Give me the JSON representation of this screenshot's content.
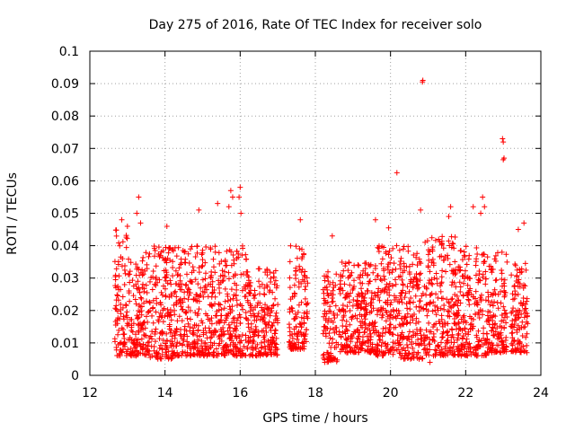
{
  "chart_data": {
    "type": "scatter",
    "title": "Day 275 of 2016, Rate Of TEC Index for receiver solo",
    "xlabel": "GPS time / hours",
    "ylabel": "ROTI / TECUs",
    "xlim": [
      12,
      24
    ],
    "ylim": [
      0,
      0.1
    ],
    "xticks": [
      12,
      14,
      16,
      18,
      20,
      22,
      24
    ],
    "xtick_labels": [
      "12",
      "14",
      "16",
      "18",
      "20",
      "22",
      "24"
    ],
    "yticks": [
      0,
      0.01,
      0.02,
      0.03,
      0.04,
      0.05,
      0.06,
      0.07,
      0.08,
      0.09,
      0.1
    ],
    "ytick_labels": [
      "0",
      "0.01",
      "0.02",
      "0.03",
      "0.04",
      "0.05",
      "0.06",
      "0.07",
      "0.08",
      "0.09",
      "0.1"
    ],
    "grid": true,
    "marker": "+",
    "series": [
      {
        "name": "ROTI",
        "color": "#ff0000",
        "x_range": [
          12.65,
          23.65
        ],
        "y_typical": [
          0.005,
          0.035
        ],
        "clusters": [
          {
            "x_from": 12.65,
            "x_to": 13.0,
            "y_from": 0.006,
            "y_to": 0.045
          },
          {
            "x_from": 13.0,
            "x_to": 13.6,
            "y_from": 0.006,
            "y_to": 0.038
          },
          {
            "x_from": 13.6,
            "x_to": 14.2,
            "y_from": 0.005,
            "y_to": 0.04
          },
          {
            "x_from": 14.2,
            "x_to": 14.8,
            "y_from": 0.006,
            "y_to": 0.04
          },
          {
            "x_from": 14.8,
            "x_to": 15.5,
            "y_from": 0.006,
            "y_to": 0.04
          },
          {
            "x_from": 15.5,
            "x_to": 16.2,
            "y_from": 0.006,
            "y_to": 0.04
          },
          {
            "x_from": 16.2,
            "x_to": 17.0,
            "y_from": 0.006,
            "y_to": 0.033
          },
          {
            "x_from": 17.3,
            "x_to": 17.8,
            "y_from": 0.008,
            "y_to": 0.04
          },
          {
            "x_from": 18.2,
            "x_to": 18.6,
            "y_from": 0.004,
            "y_to": 0.032
          },
          {
            "x_from": 18.6,
            "x_to": 19.6,
            "y_from": 0.007,
            "y_to": 0.035
          },
          {
            "x_from": 19.6,
            "x_to": 20.2,
            "y_from": 0.006,
            "y_to": 0.04
          },
          {
            "x_from": 20.2,
            "x_to": 20.9,
            "y_from": 0.005,
            "y_to": 0.04
          },
          {
            "x_from": 20.9,
            "x_to": 21.8,
            "y_from": 0.006,
            "y_to": 0.043
          },
          {
            "x_from": 21.8,
            "x_to": 22.6,
            "y_from": 0.006,
            "y_to": 0.04
          },
          {
            "x_from": 22.6,
            "x_to": 23.1,
            "y_from": 0.007,
            "y_to": 0.038
          },
          {
            "x_from": 23.2,
            "x_to": 23.65,
            "y_from": 0.007,
            "y_to": 0.035
          }
        ],
        "notable_points": [
          {
            "x": 20.85,
            "y": 0.0905
          },
          {
            "x": 20.86,
            "y": 0.091
          },
          {
            "x": 20.17,
            "y": 0.0625
          },
          {
            "x": 22.98,
            "y": 0.073
          },
          {
            "x": 23.0,
            "y": 0.072
          },
          {
            "x": 23.0,
            "y": 0.0665
          },
          {
            "x": 23.02,
            "y": 0.067
          },
          {
            "x": 15.75,
            "y": 0.057
          },
          {
            "x": 15.8,
            "y": 0.055
          },
          {
            "x": 15.7,
            "y": 0.052
          },
          {
            "x": 16.0,
            "y": 0.058
          },
          {
            "x": 15.97,
            "y": 0.055
          },
          {
            "x": 16.02,
            "y": 0.05
          },
          {
            "x": 15.4,
            "y": 0.053
          },
          {
            "x": 13.3,
            "y": 0.055
          },
          {
            "x": 13.25,
            "y": 0.05
          },
          {
            "x": 13.35,
            "y": 0.047
          },
          {
            "x": 14.9,
            "y": 0.051
          },
          {
            "x": 14.05,
            "y": 0.046
          },
          {
            "x": 22.45,
            "y": 0.055
          },
          {
            "x": 22.5,
            "y": 0.052
          },
          {
            "x": 22.4,
            "y": 0.05
          },
          {
            "x": 21.6,
            "y": 0.052
          },
          {
            "x": 21.55,
            "y": 0.049
          },
          {
            "x": 22.2,
            "y": 0.052
          },
          {
            "x": 19.95,
            "y": 0.0455
          },
          {
            "x": 20.8,
            "y": 0.051
          },
          {
            "x": 17.6,
            "y": 0.048
          },
          {
            "x": 18.45,
            "y": 0.043
          },
          {
            "x": 23.55,
            "y": 0.047
          },
          {
            "x": 23.4,
            "y": 0.045
          },
          {
            "x": 12.85,
            "y": 0.048
          },
          {
            "x": 13.0,
            "y": 0.046
          },
          {
            "x": 19.6,
            "y": 0.048
          },
          {
            "x": 21.05,
            "y": 0.004
          }
        ]
      }
    ]
  }
}
